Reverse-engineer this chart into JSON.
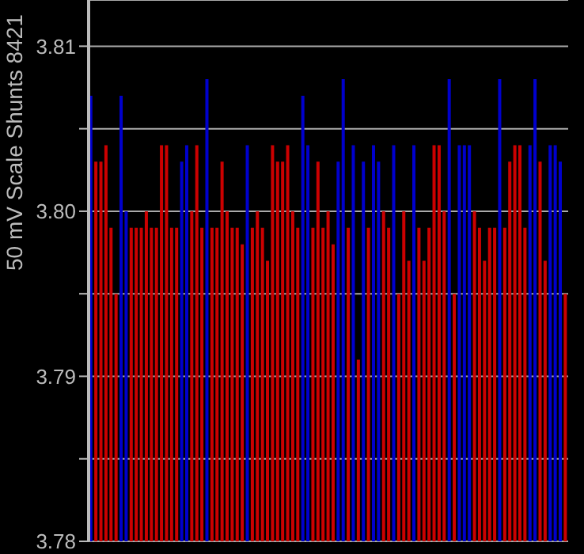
{
  "chart_data": {
    "type": "bar",
    "ylabel": "50 mV Scale   Shunts 8421",
    "categories": [
      null,
      null,
      null,
      null,
      null,
      null,
      null,
      null,
      null,
      null,
      null,
      null,
      null,
      null,
      null,
      null,
      null,
      null,
      null,
      null,
      null,
      null,
      null,
      null,
      null,
      null,
      null,
      null,
      null,
      null,
      null,
      null,
      null,
      null,
      null,
      null,
      null,
      null,
      null,
      null,
      null,
      null,
      null,
      null,
      null,
      null,
      null,
      null,
      null,
      null,
      null,
      null,
      null,
      null,
      null,
      null,
      null,
      null,
      null,
      null,
      null,
      null,
      null,
      null,
      null,
      null,
      null,
      null,
      null,
      null,
      null,
      null,
      null,
      null,
      null,
      null,
      null,
      null,
      null,
      null,
      null,
      null,
      null,
      null,
      null,
      null,
      null,
      null,
      null,
      null,
      null,
      null,
      null,
      null,
      null
    ],
    "values": [
      3.807,
      3.803,
      3.803,
      3.804,
      3.799,
      3.795,
      3.807,
      3.8,
      3.799,
      3.799,
      3.799,
      3.8,
      3.799,
      3.799,
      3.804,
      3.804,
      3.799,
      3.799,
      3.803,
      3.804,
      3.8,
      3.804,
      3.799,
      3.808,
      3.799,
      3.799,
      3.803,
      3.8,
      3.799,
      3.799,
      3.798,
      3.804,
      3.799,
      3.8,
      3.799,
      3.797,
      3.804,
      3.803,
      3.803,
      3.804,
      3.8,
      3.799,
      3.807,
      3.804,
      3.799,
      3.803,
      3.799,
      3.8,
      3.798,
      3.803,
      3.808,
      3.799,
      3.804,
      3.791,
      3.803,
      3.799,
      3.804,
      3.803,
      3.8,
      3.799,
      3.804,
      3.795,
      3.8,
      3.797,
      3.804,
      3.799,
      3.797,
      3.799,
      3.804,
      3.804,
      3.8,
      3.808,
      3.795,
      3.804,
      3.804,
      3.804,
      3.8,
      3.799,
      3.797,
      3.799,
      3.799,
      3.808,
      3.799,
      3.803,
      3.804,
      3.804,
      3.799,
      3.804,
      3.808,
      3.803,
      3.797,
      3.804,
      3.804,
      3.803,
      3.795
    ],
    "colors": [
      "#0000cc",
      "#cc0000",
      "#cc0000",
      "#cc0000",
      "#cc0000",
      "#cc0000",
      "#0000cc",
      "#0000cc",
      "#cc0000",
      "#cc0000",
      "#cc0000",
      "#cc0000",
      "#cc0000",
      "#cc0000",
      "#cc0000",
      "#cc0000",
      "#cc0000",
      "#cc0000",
      "#0000cc",
      "#0000cc",
      "#cc0000",
      "#cc0000",
      "#cc0000",
      "#0000cc",
      "#cc0000",
      "#cc0000",
      "#cc0000",
      "#cc0000",
      "#cc0000",
      "#cc0000",
      "#cc0000",
      "#0000cc",
      "#cc0000",
      "#cc0000",
      "#cc0000",
      "#cc0000",
      "#cc0000",
      "#cc0000",
      "#cc0000",
      "#cc0000",
      "#cc0000",
      "#cc0000",
      "#0000cc",
      "#0000cc",
      "#cc0000",
      "#cc0000",
      "#cc0000",
      "#cc0000",
      "#cc0000",
      "#0000cc",
      "#0000cc",
      "#cc0000",
      "#0000cc",
      "#cc0000",
      "#0000cc",
      "#cc0000",
      "#0000cc",
      "#0000cc",
      "#cc0000",
      "#cc0000",
      "#0000cc",
      "#cc0000",
      "#cc0000",
      "#cc0000",
      "#0000cc",
      "#cc0000",
      "#cc0000",
      "#cc0000",
      "#cc0000",
      "#cc0000",
      "#cc0000",
      "#0000cc",
      "#cc0000",
      "#0000cc",
      "#0000cc",
      "#0000cc",
      "#cc0000",
      "#cc0000",
      "#cc0000",
      "#cc0000",
      "#cc0000",
      "#0000cc",
      "#cc0000",
      "#cc0000",
      "#cc0000",
      "#cc0000",
      "#cc0000",
      "#0000cc",
      "#0000cc",
      "#cc0000",
      "#cc0000",
      "#0000cc",
      "#0000cc",
      "#0000cc",
      "#cc0000"
    ],
    "ylim": [
      3.78,
      3.8128
    ],
    "yticks": [
      {
        "value": 3.78,
        "label": "3.78"
      },
      {
        "value": 3.785,
        "label": null
      },
      {
        "value": 3.79,
        "label": "3.79"
      },
      {
        "value": 3.795,
        "label": null
      },
      {
        "value": 3.8,
        "label": "3.80"
      },
      {
        "value": 3.805,
        "label": null
      },
      {
        "value": 3.81,
        "label": "3.81"
      }
    ],
    "grid": "y",
    "tick_labels": "y"
  }
}
